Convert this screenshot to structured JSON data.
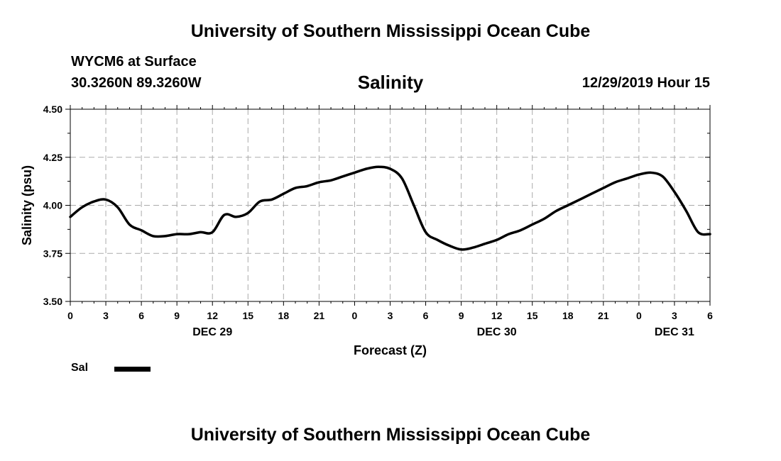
{
  "header": {
    "title": "University of Southern Mississippi Ocean Cube",
    "station": "WYCM6 at Surface",
    "coordinates": "30.3260N 89.3260W",
    "chart_title": "Salinity",
    "timestamp": "12/29/2019 Hour 15"
  },
  "footer": {
    "title": "University of Southern Mississippi Ocean Cube"
  },
  "legend": {
    "label": "Sal"
  },
  "chart_data": {
    "type": "line",
    "title": "Salinity",
    "xlabel": "Forecast (Z)",
    "ylabel": "Salinity (psu)",
    "ylim": [
      3.5,
      4.5
    ],
    "y_ticks": [
      "3.50",
      "3.75",
      "4.00",
      "4.25",
      "4.50"
    ],
    "x_range_hours": [
      0,
      54
    ],
    "x_tick_labels": [
      "0",
      "3",
      "6",
      "9",
      "12",
      "15",
      "18",
      "21",
      "0",
      "3",
      "6",
      "9",
      "12",
      "15",
      "18",
      "21",
      "0",
      "3",
      "6"
    ],
    "day_labels": [
      {
        "label": "DEC 29",
        "hour": 12
      },
      {
        "label": "DEC 30",
        "hour": 36
      },
      {
        "label": "DEC 31",
        "hour": 51
      }
    ],
    "grid": true,
    "series": [
      {
        "name": "Sal",
        "color": "#000000",
        "x": [
          0,
          1,
          2,
          3,
          4,
          5,
          6,
          7,
          8,
          9,
          10,
          11,
          12,
          13,
          14,
          15,
          16,
          17,
          18,
          19,
          20,
          21,
          22,
          23,
          24,
          25,
          26,
          27,
          28,
          29,
          30,
          31,
          32,
          33,
          34,
          35,
          36,
          37,
          38,
          39,
          40,
          41,
          42,
          43,
          44,
          45,
          46,
          47,
          48,
          49,
          50,
          51,
          52,
          53,
          54
        ],
        "values": [
          3.94,
          3.99,
          4.02,
          4.03,
          3.99,
          3.9,
          3.87,
          3.84,
          3.84,
          3.85,
          3.85,
          3.86,
          3.86,
          3.95,
          3.94,
          3.96,
          4.02,
          4.03,
          4.06,
          4.09,
          4.1,
          4.12,
          4.13,
          4.15,
          4.17,
          4.19,
          4.2,
          4.19,
          4.14,
          4.0,
          3.86,
          3.82,
          3.79,
          3.77,
          3.78,
          3.8,
          3.82,
          3.85,
          3.87,
          3.9,
          3.93,
          3.97,
          4.0,
          4.03,
          4.06,
          4.09,
          4.12,
          4.14,
          4.16,
          4.17,
          4.15,
          4.07,
          3.97,
          3.86,
          3.85
        ]
      }
    ]
  }
}
